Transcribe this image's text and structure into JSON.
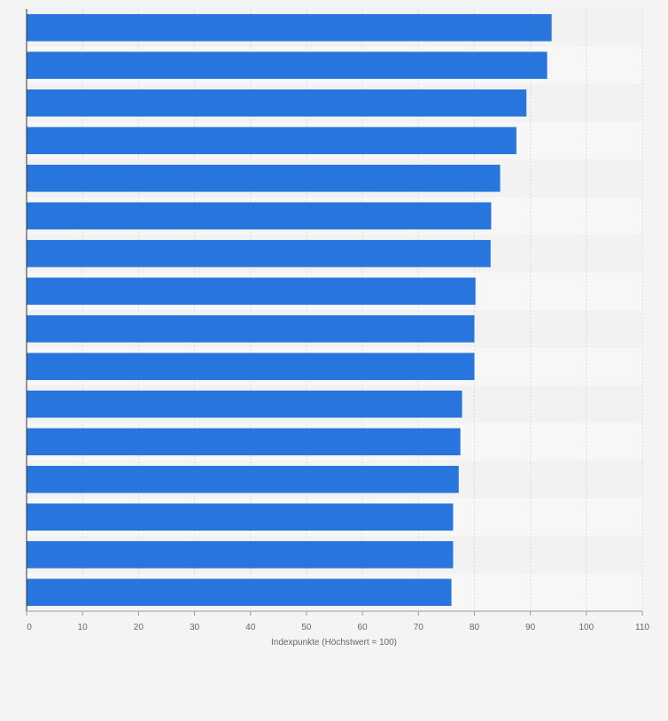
{
  "chart_data": {
    "type": "bar",
    "orientation": "horizontal",
    "categories": [
      "",
      "",
      "",
      "",
      "",
      "",
      "",
      "",
      "",
      "",
      "",
      "",
      "",
      "",
      "",
      ""
    ],
    "values": [
      93.8,
      93.0,
      89.3,
      87.5,
      84.6,
      83.0,
      82.9,
      80.2,
      80.0,
      80.0,
      77.8,
      77.5,
      77.2,
      76.2,
      76.2,
      75.9
    ],
    "xlabel": "Indexpunkte (Höchstwert = 100)",
    "ylabel": "",
    "xlim": [
      0,
      110
    ],
    "xticks": [
      "0",
      "10",
      "20",
      "30",
      "40",
      "50",
      "60",
      "70",
      "80",
      "90",
      "100",
      "110"
    ],
    "grid": true,
    "bar_color": "#2876dd",
    "band_colors": [
      "#f2f2f2",
      "#f7f7f7"
    ],
    "background": "#f4f4f4"
  }
}
